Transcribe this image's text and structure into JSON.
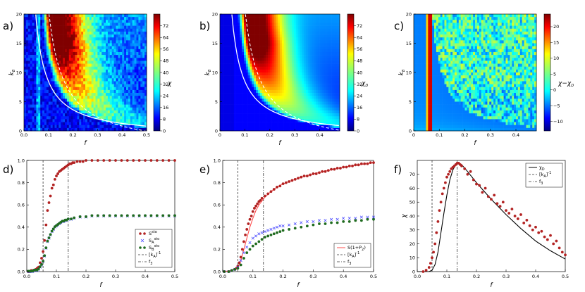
{
  "panel_letters": [
    "a)",
    "b)",
    "c)",
    "d)",
    "e)",
    "f)"
  ],
  "colors": {
    "marker_red": "#b22222",
    "marker_blue": "#3a3aff",
    "marker_green": "#1f6b1f",
    "fit_red": "#ff4d4d"
  },
  "chart_data": [
    {
      "panel": "a)",
      "type": "heatmap",
      "xlabel": "f",
      "ylabel": "k_B",
      "colorbar_label": "χ",
      "xlim": [
        0,
        0.5
      ],
      "ylim": [
        0,
        20
      ],
      "xticks": [
        "0.0",
        "0.1",
        "0.2",
        "0.3",
        "0.4",
        "0.5"
      ],
      "yticks": [
        "0",
        "5",
        "10",
        "15",
        "20"
      ],
      "colorbar_range": [
        0,
        80
      ],
      "colorbar_ticks": [
        "0",
        "8",
        "16",
        "24",
        "32",
        "40",
        "48",
        "56",
        "64",
        "72"
      ],
      "overlays": [
        "solid white curve",
        "dashed white curve"
      ]
    },
    {
      "panel": "b)",
      "type": "heatmap",
      "xlabel": "f",
      "ylabel": "k_B",
      "colorbar_label": "χ_D",
      "xlim": [
        0,
        0.48
      ],
      "ylim": [
        0,
        20
      ],
      "xticks": [
        "0",
        "0.1",
        "0.2",
        "0.3",
        "0.4"
      ],
      "yticks": [
        "0",
        "5",
        "10",
        "15",
        "20"
      ],
      "colorbar_range": [
        0,
        80
      ],
      "colorbar_ticks": [
        "0",
        "8",
        "16",
        "24",
        "32",
        "40",
        "48",
        "56",
        "64",
        "72"
      ],
      "overlays": [
        "solid white curve",
        "dashed white curve"
      ]
    },
    {
      "panel": "c)",
      "type": "heatmap",
      "xlabel": "f",
      "ylabel": "k_B",
      "colorbar_label": "χ−χ_D",
      "xlim": [
        0,
        0.48
      ],
      "ylim": [
        0,
        20
      ],
      "xticks": [
        "0",
        "0.1",
        "0.2",
        "0.3",
        "0.4"
      ],
      "yticks": [
        "0",
        "5",
        "10",
        "15",
        "20"
      ],
      "colorbar_range": [
        -13,
        24
      ],
      "colorbar_ticks": [
        "−10",
        "−5",
        "0",
        "5",
        "10",
        "15",
        "20"
      ]
    },
    {
      "panel": "d)",
      "type": "scatter",
      "xlabel": "f",
      "xlim": [
        0,
        0.5
      ],
      "ylim": [
        0,
        1
      ],
      "xticks": [
        "0.0",
        "0.1",
        "0.2",
        "0.3",
        "0.4",
        "0.5"
      ],
      "yticks": [
        "0.0",
        "0.2",
        "0.4",
        "0.6",
        "0.8",
        "1.0"
      ],
      "legend": [
        "S^{sto}",
        "S_A^{sto}",
        "S_B^{sto}",
        "[k_A]^{-1}",
        "f_3"
      ],
      "legend_position": "lower right",
      "vlines": [
        0.055,
        0.14
      ],
      "series": [
        {
          "name": "S^{sto}",
          "marker": "circle",
          "color": "red",
          "x": [
            0.005,
            0.01,
            0.015,
            0.02,
            0.025,
            0.03,
            0.035,
            0.04,
            0.045,
            0.05,
            0.055,
            0.06,
            0.065,
            0.07,
            0.075,
            0.08,
            0.085,
            0.09,
            0.095,
            0.1,
            0.105,
            0.11,
            0.115,
            0.12,
            0.125,
            0.13,
            0.135,
            0.14,
            0.145,
            0.15,
            0.155,
            0.16,
            0.17,
            0.18,
            0.19,
            0.2,
            0.22,
            0.24,
            0.26,
            0.28,
            0.3,
            0.32,
            0.34,
            0.36,
            0.38,
            0.4,
            0.42,
            0.44,
            0.46,
            0.48,
            0.5
          ],
          "y": [
            0.0,
            0.0,
            0.01,
            0.01,
            0.01,
            0.02,
            0.03,
            0.04,
            0.08,
            0.12,
            0.18,
            0.28,
            0.42,
            0.55,
            0.62,
            0.68,
            0.75,
            0.78,
            0.83,
            0.86,
            0.88,
            0.9,
            0.91,
            0.92,
            0.93,
            0.94,
            0.95,
            0.96,
            0.97,
            0.97,
            0.98,
            0.98,
            0.99,
            0.99,
            0.99,
            1.0,
            1.0,
            1.0,
            1.0,
            1.0,
            1.0,
            1.0,
            1.0,
            1.0,
            1.0,
            1.0,
            1.0,
            1.0,
            1.0,
            1.0,
            1.0
          ]
        },
        {
          "name": "S_A^{sto}",
          "marker": "x",
          "color": "blue",
          "x": [
            0.005,
            0.01,
            0.015,
            0.02,
            0.025,
            0.03,
            0.035,
            0.04,
            0.045,
            0.05,
            0.055,
            0.06,
            0.065,
            0.07,
            0.075,
            0.08,
            0.085,
            0.09,
            0.095,
            0.1,
            0.105,
            0.11,
            0.115,
            0.12,
            0.125,
            0.13,
            0.135,
            0.14,
            0.15,
            0.16,
            0.18,
            0.2,
            0.22,
            0.24,
            0.26,
            0.28,
            0.3,
            0.32,
            0.34,
            0.36,
            0.38,
            0.4,
            0.42,
            0.44,
            0.46,
            0.48,
            0.5
          ],
          "y": [
            0.0,
            0.0,
            0.0,
            0.0,
            0.01,
            0.01,
            0.01,
            0.02,
            0.04,
            0.06,
            0.09,
            0.14,
            0.21,
            0.27,
            0.3,
            0.33,
            0.36,
            0.38,
            0.4,
            0.41,
            0.42,
            0.43,
            0.44,
            0.45,
            0.45,
            0.46,
            0.46,
            0.47,
            0.47,
            0.48,
            0.49,
            0.49,
            0.5,
            0.5,
            0.5,
            0.5,
            0.5,
            0.5,
            0.5,
            0.5,
            0.5,
            0.5,
            0.5,
            0.5,
            0.5,
            0.5,
            0.5
          ]
        },
        {
          "name": "S_B^{sto}",
          "marker": "circle",
          "color": "green",
          "x": [
            0.005,
            0.01,
            0.015,
            0.02,
            0.025,
            0.03,
            0.035,
            0.04,
            0.045,
            0.05,
            0.055,
            0.06,
            0.065,
            0.07,
            0.075,
            0.08,
            0.085,
            0.09,
            0.095,
            0.1,
            0.105,
            0.11,
            0.115,
            0.12,
            0.125,
            0.13,
            0.135,
            0.14,
            0.15,
            0.16,
            0.18,
            0.2,
            0.22,
            0.24,
            0.26,
            0.28,
            0.3,
            0.32,
            0.34,
            0.36,
            0.38,
            0.4,
            0.42,
            0.44,
            0.46,
            0.48,
            0.5
          ],
          "y": [
            0.0,
            0.0,
            0.0,
            0.0,
            0.01,
            0.01,
            0.01,
            0.02,
            0.04,
            0.06,
            0.09,
            0.14,
            0.21,
            0.27,
            0.3,
            0.33,
            0.36,
            0.38,
            0.4,
            0.41,
            0.42,
            0.43,
            0.44,
            0.45,
            0.45,
            0.46,
            0.46,
            0.47,
            0.47,
            0.48,
            0.49,
            0.49,
            0.5,
            0.5,
            0.5,
            0.5,
            0.5,
            0.5,
            0.5,
            0.5,
            0.5,
            0.5,
            0.5,
            0.5,
            0.5,
            0.5,
            0.5
          ]
        }
      ]
    },
    {
      "panel": "e)",
      "type": "scatter",
      "xlabel": "f",
      "xlim": [
        0,
        0.5
      ],
      "ylim": [
        0,
        1
      ],
      "xticks": [
        "0.0",
        "0.1",
        "0.2",
        "0.3",
        "0.4",
        "0.5"
      ],
      "yticks": [
        "0.0",
        "0.2",
        "0.4",
        "0.6",
        "0.8",
        "1.0"
      ],
      "legend": [
        "S(1+P_2)",
        "[k_A]^{-1}",
        "f_3"
      ],
      "legend_position": "lower right",
      "vlines": [
        0.05,
        0.135
      ],
      "curve": {
        "name": "S(1+P_2)",
        "color": "red",
        "x": [
          0.0,
          0.03,
          0.05,
          0.06,
          0.07,
          0.08,
          0.09,
          0.1,
          0.11,
          0.12,
          0.14,
          0.16,
          0.18,
          0.2,
          0.25,
          0.3,
          0.35,
          0.4,
          0.45,
          0.5
        ],
        "y": [
          0.0,
          0.01,
          0.04,
          0.1,
          0.2,
          0.3,
          0.4,
          0.48,
          0.55,
          0.6,
          0.67,
          0.72,
          0.76,
          0.79,
          0.84,
          0.88,
          0.91,
          0.94,
          0.96,
          0.98
        ]
      },
      "series": [
        {
          "name": "red dots",
          "marker": "circle",
          "color": "red",
          "x": [
            0.005,
            0.02,
            0.03,
            0.04,
            0.045,
            0.05,
            0.055,
            0.06,
            0.065,
            0.07,
            0.075,
            0.08,
            0.085,
            0.09,
            0.095,
            0.1,
            0.105,
            0.11,
            0.115,
            0.12,
            0.125,
            0.13,
            0.14,
            0.15,
            0.16,
            0.17,
            0.18,
            0.19,
            0.2,
            0.21,
            0.22,
            0.23,
            0.24,
            0.25,
            0.26,
            0.27,
            0.28,
            0.29,
            0.3,
            0.31,
            0.32,
            0.33,
            0.34,
            0.35,
            0.36,
            0.37,
            0.38,
            0.39,
            0.4,
            0.41,
            0.42,
            0.43,
            0.44,
            0.45,
            0.46,
            0.47,
            0.48,
            0.49,
            0.5
          ],
          "y": [
            0.0,
            0.0,
            0.01,
            0.02,
            0.03,
            0.05,
            0.08,
            0.13,
            0.2,
            0.27,
            0.33,
            0.38,
            0.43,
            0.47,
            0.5,
            0.54,
            0.57,
            0.59,
            0.61,
            0.63,
            0.64,
            0.66,
            0.68,
            0.7,
            0.72,
            0.74,
            0.76,
            0.77,
            0.79,
            0.8,
            0.81,
            0.82,
            0.83,
            0.84,
            0.85,
            0.86,
            0.86,
            0.87,
            0.88,
            0.88,
            0.89,
            0.9,
            0.9,
            0.91,
            0.92,
            0.92,
            0.93,
            0.93,
            0.94,
            0.94,
            0.95,
            0.95,
            0.96,
            0.96,
            0.97,
            0.97,
            0.97,
            0.98,
            0.98
          ]
        },
        {
          "name": "blue x",
          "marker": "x",
          "color": "blue",
          "x": [
            0.005,
            0.02,
            0.03,
            0.04,
            0.05,
            0.06,
            0.07,
            0.08,
            0.09,
            0.1,
            0.11,
            0.12,
            0.13,
            0.14,
            0.15,
            0.16,
            0.17,
            0.18,
            0.19,
            0.2,
            0.22,
            0.24,
            0.26,
            0.28,
            0.3,
            0.32,
            0.34,
            0.36,
            0.38,
            0.4,
            0.42,
            0.44,
            0.46,
            0.48,
            0.5
          ],
          "y": [
            0.0,
            0.0,
            0.01,
            0.02,
            0.04,
            0.1,
            0.17,
            0.22,
            0.26,
            0.3,
            0.32,
            0.34,
            0.35,
            0.36,
            0.37,
            0.38,
            0.39,
            0.4,
            0.41,
            0.41,
            0.42,
            0.43,
            0.44,
            0.45,
            0.45,
            0.46,
            0.46,
            0.47,
            0.47,
            0.48,
            0.48,
            0.48,
            0.49,
            0.49,
            0.49
          ]
        },
        {
          "name": "green dots",
          "marker": "circle",
          "color": "green",
          "x": [
            0.005,
            0.02,
            0.03,
            0.04,
            0.05,
            0.06,
            0.07,
            0.08,
            0.09,
            0.1,
            0.11,
            0.12,
            0.13,
            0.14,
            0.15,
            0.16,
            0.17,
            0.18,
            0.19,
            0.2,
            0.22,
            0.24,
            0.26,
            0.28,
            0.3,
            0.32,
            0.34,
            0.36,
            0.38,
            0.4,
            0.42,
            0.44,
            0.46,
            0.48,
            0.5
          ],
          "y": [
            0.0,
            0.0,
            0.01,
            0.02,
            0.03,
            0.06,
            0.12,
            0.17,
            0.2,
            0.23,
            0.25,
            0.27,
            0.29,
            0.31,
            0.32,
            0.33,
            0.34,
            0.35,
            0.36,
            0.37,
            0.38,
            0.39,
            0.4,
            0.41,
            0.42,
            0.43,
            0.43,
            0.44,
            0.44,
            0.45,
            0.45,
            0.46,
            0.46,
            0.47,
            0.47
          ]
        }
      ]
    },
    {
      "panel": "f)",
      "type": "scatter",
      "xlabel": "f",
      "ylabel": "χ",
      "xlim": [
        0,
        0.5
      ],
      "ylim": [
        0,
        80
      ],
      "xticks": [
        "0.0",
        "0.1",
        "0.2",
        "0.3",
        "0.4",
        "0.5"
      ],
      "yticks": [
        "0",
        "10",
        "20",
        "30",
        "40",
        "50",
        "60",
        "70"
      ],
      "legend": [
        "χ_D",
        "[k_A]^{-1}",
        "f_3"
      ],
      "legend_position": "upper right",
      "vlines": [
        0.05,
        0.135
      ],
      "curve": {
        "name": "χ_D",
        "color": "black",
        "x": [
          0.0,
          0.04,
          0.05,
          0.06,
          0.07,
          0.08,
          0.09,
          0.1,
          0.11,
          0.12,
          0.13,
          0.14,
          0.15,
          0.17,
          0.2,
          0.25,
          0.3,
          0.35,
          0.4,
          0.45,
          0.5
        ],
        "y": [
          0,
          0,
          1,
          5,
          14,
          28,
          42,
          55,
          66,
          73,
          77,
          78,
          77,
          72,
          64,
          52,
          41,
          31,
          22,
          15,
          9
        ]
      },
      "series": [
        {
          "name": "red dots",
          "marker": "circle",
          "color": "red",
          "x": [
            0.02,
            0.03,
            0.04,
            0.045,
            0.05,
            0.055,
            0.06,
            0.065,
            0.07,
            0.075,
            0.08,
            0.085,
            0.09,
            0.095,
            0.1,
            0.105,
            0.11,
            0.115,
            0.12,
            0.125,
            0.13,
            0.135,
            0.14,
            0.145,
            0.15,
            0.16,
            0.17,
            0.18,
            0.19,
            0.2,
            0.21,
            0.22,
            0.23,
            0.24,
            0.25,
            0.26,
            0.27,
            0.28,
            0.29,
            0.3,
            0.31,
            0.32,
            0.33,
            0.34,
            0.35,
            0.36,
            0.37,
            0.38,
            0.39,
            0.4,
            0.41,
            0.42,
            0.43,
            0.44,
            0.45,
            0.46,
            0.47,
            0.48,
            0.49,
            0.5
          ],
          "y": [
            0,
            1,
            3,
            6,
            10,
            14,
            20,
            28,
            36,
            44,
            50,
            56,
            60,
            64,
            68,
            70,
            72,
            74,
            75,
            76,
            77,
            78,
            78,
            77,
            76,
            74,
            70,
            72,
            66,
            63,
            62,
            57,
            60,
            54,
            52,
            55,
            49,
            47,
            50,
            44,
            42,
            45,
            40,
            38,
            41,
            35,
            37,
            33,
            30,
            32,
            28,
            29,
            25,
            23,
            26,
            20,
            22,
            17,
            14,
            12
          ]
        }
      ]
    }
  ]
}
